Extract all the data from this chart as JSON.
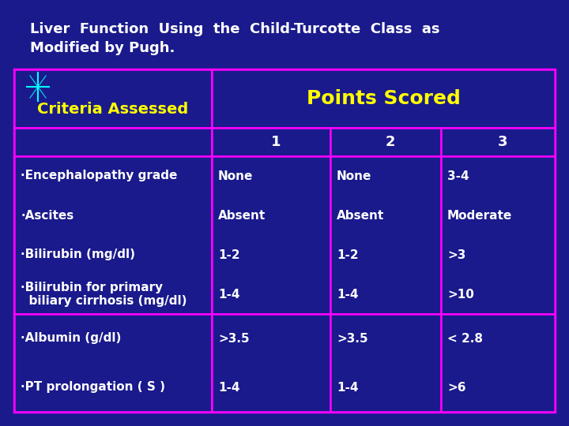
{
  "title_line1": "Liver  Function  Using  the  Child-Turcotte  Class  as",
  "title_line2": "Modified by Pugh.",
  "bg_color": "#1a1a8c",
  "white": "#ffffff",
  "yellow": "#ffff00",
  "magenta": "#ff00ff",
  "table_bg": "#1a1a8c",
  "header1": "Criteria Assessed",
  "header2": "Points Scored",
  "col_headers": [
    "1",
    "2",
    "3"
  ],
  "left_col_items_group1": [
    "·Encephalopathy grade",
    "·Ascites",
    "·Bilirubin (mg/dl)",
    "·Bilirubin for primary\n  biliary cirrhosis (mg/dl)"
  ],
  "left_col_items_group2": [
    "·Albumin (g/dl)",
    "·PT prolongation ( S )"
  ],
  "group1_c1": [
    "None",
    "Absent",
    "1-2",
    "1-4"
  ],
  "group1_c2": [
    "None",
    "Absent",
    "1-2",
    "1-4"
  ],
  "group1_c3": [
    "3-4",
    "Moderate",
    ">3",
    ">10"
  ],
  "group2_c1": [
    ">3.5",
    "1-4"
  ],
  "group2_c2": [
    ">3.5",
    "1-4"
  ],
  "group2_c3": [
    "< 2.8",
    ">6"
  ],
  "title_fontsize": 13,
  "header_fontsize": 14,
  "points_fontsize": 18,
  "col_num_fontsize": 13,
  "data_fontsize": 11,
  "crit_fontsize": 11
}
